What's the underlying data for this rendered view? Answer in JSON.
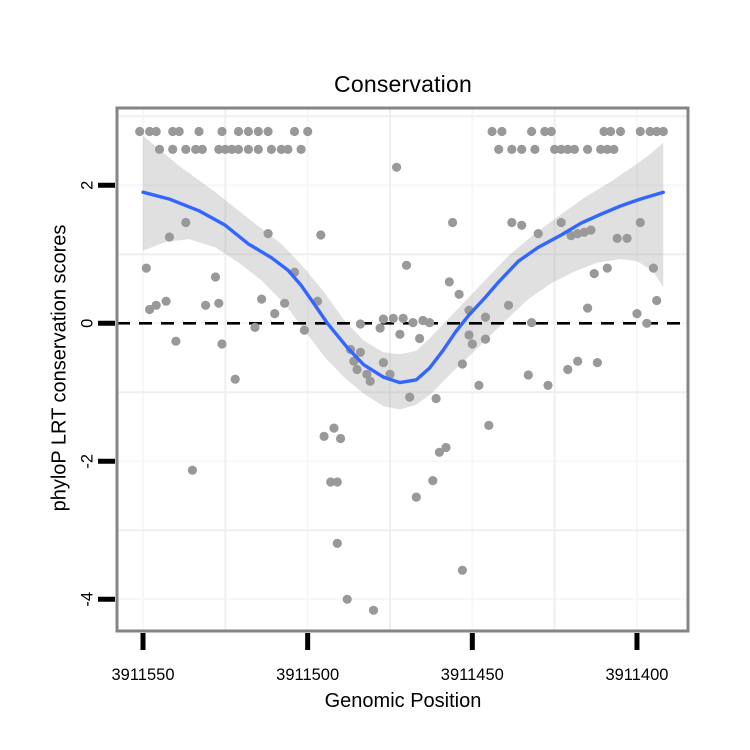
{
  "chart_data": {
    "type": "scatter",
    "title": "Conservation",
    "xlabel": "Genomic Position",
    "ylabel": "phyloP LRT conservation scores",
    "x_axis_reversed": true,
    "x_ticks": [
      3911550,
      3911500,
      3911450,
      3911400
    ],
    "y_ticks": [
      2,
      0,
      -2,
      -4
    ],
    "x_range_left_to_right": [
      3911557.9,
      3911384.5
    ],
    "y_range_top_to_bottom": [
      3.12,
      -4.46
    ],
    "x_minor_gridlines": [
      3911525,
      3911475,
      3911425
    ],
    "y_minor_gridlines": [
      3,
      1,
      -1,
      -3
    ],
    "panel_rect": [
      117,
      108,
      571,
      523
    ],
    "grid_on": true,
    "legend": "none",
    "hline": {
      "y": 0,
      "style": "dashed",
      "color": "#000000"
    },
    "colors": {
      "point": "#999999",
      "smooth_line": "#3366FF",
      "ribbon": "#999999",
      "ribbon_opacity": 0.3,
      "panel_border": "#858585",
      "grid_minor": "#EFEFEF",
      "grid_major": "#F7F7F7",
      "tick": "#000000",
      "text": "#000000"
    },
    "points": [
      [
        3911551,
        2.78
      ],
      [
        3911548,
        2.78
      ],
      [
        3911546,
        2.78
      ],
      [
        3911541,
        2.78
      ],
      [
        3911539,
        2.78
      ],
      [
        3911533,
        2.78
      ],
      [
        3911526,
        2.78
      ],
      [
        3911521,
        2.78
      ],
      [
        3911518,
        2.78
      ],
      [
        3911515,
        2.78
      ],
      [
        3911512,
        2.78
      ],
      [
        3911504,
        2.78
      ],
      [
        3911500,
        2.78
      ],
      [
        3911444,
        2.78
      ],
      [
        3911441,
        2.78
      ],
      [
        3911432,
        2.78
      ],
      [
        3911428,
        2.78
      ],
      [
        3911426,
        2.78
      ],
      [
        3911410,
        2.78
      ],
      [
        3911408,
        2.78
      ],
      [
        3911405,
        2.78
      ],
      [
        3911399,
        2.78
      ],
      [
        3911396,
        2.78
      ],
      [
        3911394,
        2.78
      ],
      [
        3911392,
        2.78
      ],
      [
        3911545,
        2.52
      ],
      [
        3911541,
        2.52
      ],
      [
        3911537,
        2.52
      ],
      [
        3911534,
        2.52
      ],
      [
        3911532,
        2.52
      ],
      [
        3911527,
        2.52
      ],
      [
        3911525,
        2.52
      ],
      [
        3911523,
        2.52
      ],
      [
        3911521,
        2.52
      ],
      [
        3911518,
        2.52
      ],
      [
        3911515,
        2.52
      ],
      [
        3911511,
        2.52
      ],
      [
        3911508,
        2.52
      ],
      [
        3911506,
        2.52
      ],
      [
        3911502,
        2.52
      ],
      [
        3911442,
        2.52
      ],
      [
        3911438,
        2.52
      ],
      [
        3911435,
        2.52
      ],
      [
        3911431,
        2.52
      ],
      [
        3911425,
        2.52
      ],
      [
        3911423,
        2.52
      ],
      [
        3911421,
        2.52
      ],
      [
        3911419,
        2.52
      ],
      [
        3911415,
        2.52
      ],
      [
        3911411,
        2.52
      ],
      [
        3911409,
        2.52
      ],
      [
        3911407,
        2.52
      ],
      [
        3911537,
        1.46
      ],
      [
        3911542,
        1.25
      ],
      [
        3911512,
        1.3
      ],
      [
        3911549,
        0.8
      ],
      [
        3911528,
        0.67
      ],
      [
        3911504,
        0.74
      ],
      [
        3911548,
        0.2
      ],
      [
        3911546,
        0.26
      ],
      [
        3911543,
        0.32
      ],
      [
        3911540,
        -0.26
      ],
      [
        3911531,
        0.26
      ],
      [
        3911527,
        0.29
      ],
      [
        3911526,
        -0.3
      ],
      [
        3911522,
        -0.81
      ],
      [
        3911516,
        -0.06
      ],
      [
        3911514,
        0.35
      ],
      [
        3911510,
        0.14
      ],
      [
        3911507,
        0.29
      ],
      [
        3911501,
        -0.1
      ],
      [
        3911535,
        -2.13
      ],
      [
        3911473,
        2.26
      ],
      [
        3911456,
        1.46
      ],
      [
        3911496,
        1.28
      ],
      [
        3911470,
        0.84
      ],
      [
        3911457,
        0.6
      ],
      [
        3911497,
        0.32
      ],
      [
        3911454,
        0.42
      ],
      [
        3911484,
        -0.01
      ],
      [
        3911478,
        -0.07
      ],
      [
        3911477,
        0.06
      ],
      [
        3911474,
        0.07
      ],
      [
        3911471,
        0.07
      ],
      [
        3911468,
        0.01
      ],
      [
        3911465,
        0.04
      ],
      [
        3911463,
        0.01
      ],
      [
        3911472,
        -0.16
      ],
      [
        3911466,
        -0.22
      ],
      [
        3911451,
        0.19
      ],
      [
        3911446,
        0.09
      ],
      [
        3911451,
        -0.17
      ],
      [
        3911450,
        -0.3
      ],
      [
        3911446,
        -0.23
      ],
      [
        3911487,
        -0.38
      ],
      [
        3911484,
        -0.42
      ],
      [
        3911486,
        -0.55
      ],
      [
        3911485,
        -0.67
      ],
      [
        3911477,
        -0.57
      ],
      [
        3911482,
        -0.74
      ],
      [
        3911481,
        -0.84
      ],
      [
        3911475,
        -0.74
      ],
      [
        3911453,
        -0.59
      ],
      [
        3911448,
        -0.9
      ],
      [
        3911469,
        -1.07
      ],
      [
        3911461,
        -1.09
      ],
      [
        3911495,
        -1.64
      ],
      [
        3911492,
        -1.52
      ],
      [
        3911490,
        -1.67
      ],
      [
        3911445,
        -1.48
      ],
      [
        3911458,
        -1.8
      ],
      [
        3911460,
        -1.87
      ],
      [
        3911439,
        0.26
      ],
      [
        3911432,
        0.01
      ],
      [
        3911415,
        0.22
      ],
      [
        3911400,
        0.14
      ],
      [
        3911397,
        0.0
      ],
      [
        3911394,
        0.33
      ],
      [
        3911433,
        -0.75
      ],
      [
        3911427,
        -0.9
      ],
      [
        3911421,
        -0.67
      ],
      [
        3911418,
        -0.55
      ],
      [
        3911412,
        -0.57
      ],
      [
        3911438,
        1.46
      ],
      [
        3911435,
        1.42
      ],
      [
        3911430,
        1.3
      ],
      [
        3911423,
        1.46
      ],
      [
        3911420,
        1.27
      ],
      [
        3911418,
        1.3
      ],
      [
        3911416,
        1.32
      ],
      [
        3911414,
        1.35
      ],
      [
        3911406,
        1.23
      ],
      [
        3911403,
        1.23
      ],
      [
        3911399,
        1.46
      ],
      [
        3911395,
        0.8
      ],
      [
        3911413,
        0.72
      ],
      [
        3911409,
        0.8
      ],
      [
        3911493,
        -2.3
      ],
      [
        3911491,
        -2.3
      ],
      [
        3911462,
        -2.28
      ],
      [
        3911467,
        -2.52
      ],
      [
        3911491,
        -3.19
      ],
      [
        3911488,
        -4.0
      ],
      [
        3911480,
        -4.16
      ],
      [
        3911453,
        -3.58
      ]
    ],
    "smooth_line": [
      [
        3911550,
        1.9
      ],
      [
        3911542,
        1.8
      ],
      [
        3911533,
        1.63
      ],
      [
        3911525,
        1.42
      ],
      [
        3911518,
        1.15
      ],
      [
        3911511,
        0.95
      ],
      [
        3911506,
        0.77
      ],
      [
        3911502,
        0.55
      ],
      [
        3911498,
        0.28
      ],
      [
        3911494,
        0.0
      ],
      [
        3911488,
        -0.35
      ],
      [
        3911483,
        -0.6
      ],
      [
        3911477,
        -0.78
      ],
      [
        3911472,
        -0.86
      ],
      [
        3911467,
        -0.82
      ],
      [
        3911463,
        -0.65
      ],
      [
        3911459,
        -0.4
      ],
      [
        3911455,
        -0.12
      ],
      [
        3911451,
        0.12
      ],
      [
        3911446,
        0.38
      ],
      [
        3911442,
        0.6
      ],
      [
        3911436,
        0.9
      ],
      [
        3911430,
        1.1
      ],
      [
        3911423,
        1.28
      ],
      [
        3911417,
        1.45
      ],
      [
        3911411,
        1.58
      ],
      [
        3911405,
        1.7
      ],
      [
        3911399,
        1.8
      ],
      [
        3911392,
        1.9
      ]
    ],
    "ribbon_upper": [
      [
        3911550,
        2.72
      ],
      [
        3911539,
        2.28
      ],
      [
        3911528,
        1.9
      ],
      [
        3911518,
        1.52
      ],
      [
        3911508,
        1.15
      ],
      [
        3911501,
        0.8
      ],
      [
        3911495,
        0.45
      ],
      [
        3911489,
        0.05
      ],
      [
        3911483,
        -0.25
      ],
      [
        3911477,
        -0.42
      ],
      [
        3911472,
        -0.45
      ],
      [
        3911467,
        -0.4
      ],
      [
        3911463,
        -0.22
      ],
      [
        3911457,
        0.08
      ],
      [
        3911451,
        0.38
      ],
      [
        3911445,
        0.68
      ],
      [
        3911439,
        0.98
      ],
      [
        3911431,
        1.3
      ],
      [
        3911423,
        1.58
      ],
      [
        3911416,
        1.82
      ],
      [
        3911408,
        2.05
      ],
      [
        3911401,
        2.28
      ],
      [
        3911396,
        2.45
      ],
      [
        3911392,
        2.62
      ]
    ],
    "ribbon_lower": [
      [
        3911550,
        1.05
      ],
      [
        3911543,
        1.18
      ],
      [
        3911536,
        1.22
      ],
      [
        3911528,
        1.1
      ],
      [
        3911521,
        0.88
      ],
      [
        3911514,
        0.62
      ],
      [
        3911507,
        0.28
      ],
      [
        3911501,
        -0.1
      ],
      [
        3911495,
        -0.48
      ],
      [
        3911489,
        -0.78
      ],
      [
        3911483,
        -1.02
      ],
      [
        3911477,
        -1.2
      ],
      [
        3911472,
        -1.25
      ],
      [
        3911467,
        -1.18
      ],
      [
        3911462,
        -1.0
      ],
      [
        3911457,
        -0.75
      ],
      [
        3911451,
        -0.48
      ],
      [
        3911445,
        -0.2
      ],
      [
        3911439,
        0.08
      ],
      [
        3911433,
        0.35
      ],
      [
        3911426,
        0.58
      ],
      [
        3911419,
        0.75
      ],
      [
        3911412,
        0.88
      ],
      [
        3911405,
        0.93
      ],
      [
        3911400,
        0.9
      ],
      [
        3911395,
        0.75
      ],
      [
        3911392,
        0.52
      ]
    ]
  }
}
